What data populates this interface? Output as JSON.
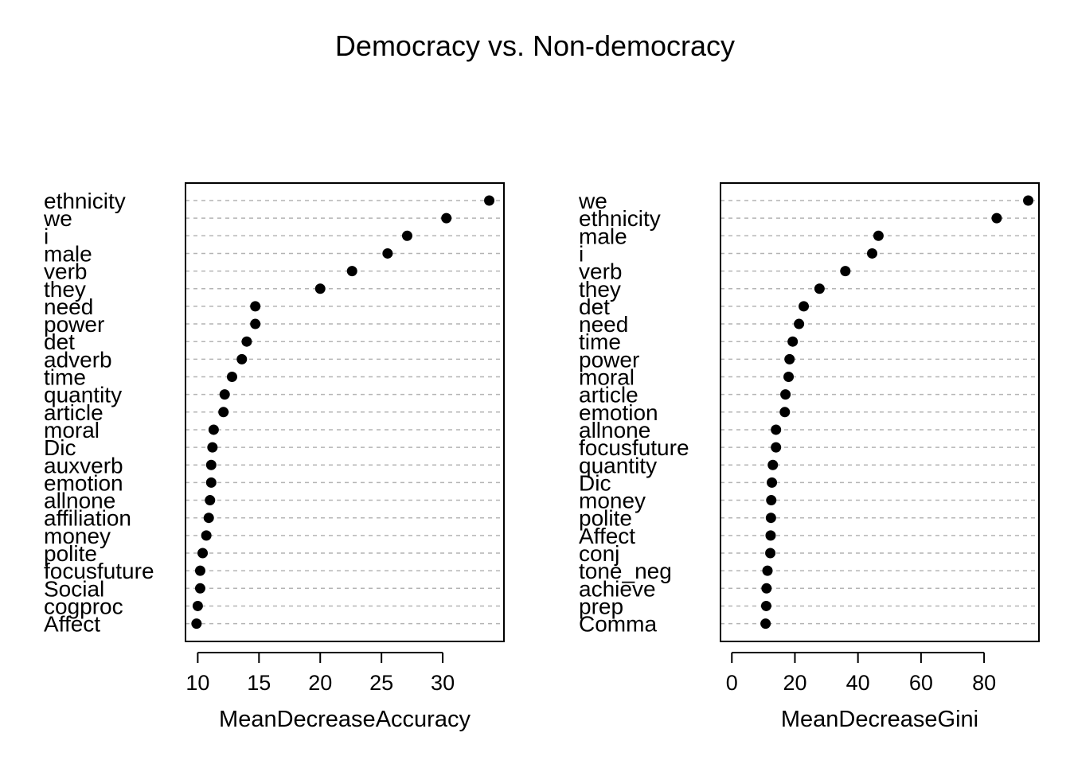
{
  "chart_data": {
    "title": "Democracy vs. Non-democracy",
    "panels": [
      {
        "type": "scatter",
        "style": "dotchart",
        "xlabel": "MeanDecreaseAccuracy",
        "xlim": [
          9,
          35
        ],
        "xticks": [
          10,
          15,
          20,
          25,
          30
        ],
        "grid": "horizontal dashed guides",
        "points": [
          {
            "label": "ethnicity",
            "value": 33.8
          },
          {
            "label": "we",
            "value": 30.3
          },
          {
            "label": "i",
            "value": 27.1
          },
          {
            "label": "male",
            "value": 25.5
          },
          {
            "label": "verb",
            "value": 22.6
          },
          {
            "label": "they",
            "value": 20.0
          },
          {
            "label": "need",
            "value": 14.7
          },
          {
            "label": "power",
            "value": 14.7
          },
          {
            "label": "det",
            "value": 14.0
          },
          {
            "label": "adverb",
            "value": 13.6
          },
          {
            "label": "time",
            "value": 12.8
          },
          {
            "label": "quantity",
            "value": 12.2
          },
          {
            "label": "article",
            "value": 12.1
          },
          {
            "label": "moral",
            "value": 11.3
          },
          {
            "label": "Dic",
            "value": 11.2
          },
          {
            "label": "auxverb",
            "value": 11.1
          },
          {
            "label": "emotion",
            "value": 11.1
          },
          {
            "label": "allnone",
            "value": 11.0
          },
          {
            "label": "affiliation",
            "value": 10.9
          },
          {
            "label": "money",
            "value": 10.7
          },
          {
            "label": "polite",
            "value": 10.4
          },
          {
            "label": "focusfuture",
            "value": 10.2
          },
          {
            "label": "Social",
            "value": 10.2
          },
          {
            "label": "cogproc",
            "value": 10.0
          },
          {
            "label": "Affect",
            "value": 9.9
          }
        ]
      },
      {
        "type": "scatter",
        "style": "dotchart",
        "xlabel": "MeanDecreaseGini",
        "xlim": [
          -3.6,
          97.4
        ],
        "xticks": [
          0,
          20,
          40,
          60,
          80
        ],
        "grid": "horizontal dashed guides",
        "points": [
          {
            "label": "we",
            "value": 94.0
          },
          {
            "label": "ethnicity",
            "value": 84.0
          },
          {
            "label": "male",
            "value": 46.5
          },
          {
            "label": "i",
            "value": 44.5
          },
          {
            "label": "verb",
            "value": 36.0
          },
          {
            "label": "they",
            "value": 27.8
          },
          {
            "label": "det",
            "value": 22.8
          },
          {
            "label": "need",
            "value": 21.3
          },
          {
            "label": "time",
            "value": 19.3
          },
          {
            "label": "power",
            "value": 18.3
          },
          {
            "label": "moral",
            "value": 18.0
          },
          {
            "label": "article",
            "value": 17.0
          },
          {
            "label": "emotion",
            "value": 16.8
          },
          {
            "label": "allnone",
            "value": 14.0
          },
          {
            "label": "focusfuture",
            "value": 14.0
          },
          {
            "label": "quantity",
            "value": 13.0
          },
          {
            "label": "Dic",
            "value": 12.7
          },
          {
            "label": "money",
            "value": 12.5
          },
          {
            "label": "polite",
            "value": 12.4
          },
          {
            "label": "Affect",
            "value": 12.3
          },
          {
            "label": "conj",
            "value": 12.2
          },
          {
            "label": "tone_neg",
            "value": 11.3
          },
          {
            "label": "achieve",
            "value": 11.0
          },
          {
            "label": "prep",
            "value": 10.9
          },
          {
            "label": "Comma",
            "value": 10.7
          }
        ]
      }
    ]
  }
}
